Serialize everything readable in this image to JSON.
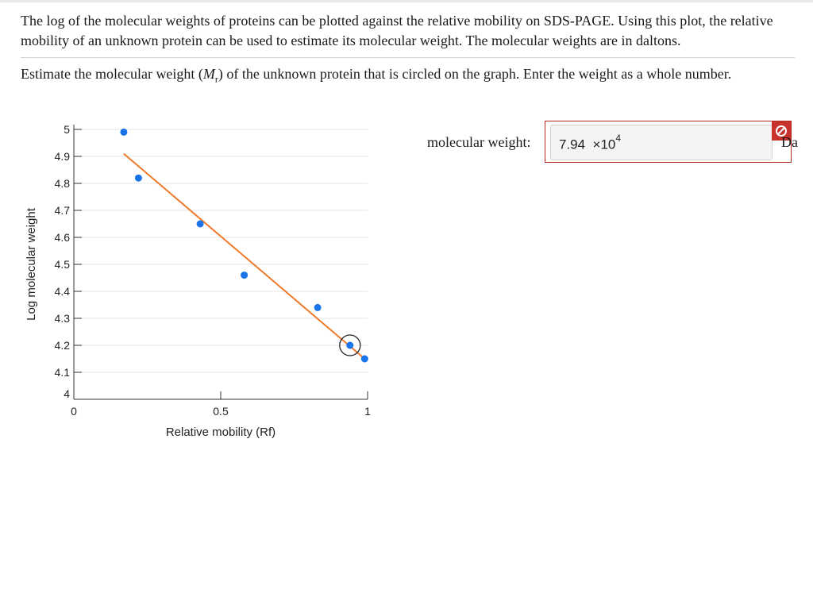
{
  "question": {
    "paragraph1": "The log of the molecular weights of proteins can be plotted against the relative mobility on SDS-PAGE. Using this plot, the relative mobility of an unknown protein can be used to estimate its molecular weight. The molecular weights are in daltons.",
    "prompt_before": "Estimate the molecular weight (",
    "prompt_symbol": "M",
    "prompt_subscript": "r",
    "prompt_after": ") of the unknown protein that is circled on the graph. Enter the weight as a whole number."
  },
  "answer": {
    "label": "molecular weight:",
    "value": "7.94",
    "times": "×10",
    "exponent": "4",
    "unit": "Da",
    "status_icon": "blocked-icon",
    "status_color": "#c7332c"
  },
  "chart_data": {
    "type": "scatter",
    "xlabel": "Relative mobility (Rf)",
    "ylabel": "Log molecular weight",
    "xlim": [
      0,
      1
    ],
    "ylim": [
      4,
      5
    ],
    "xticks": [
      "0",
      "0.5",
      "1"
    ],
    "yticks": [
      "4",
      "4.1",
      "4.2",
      "4.3",
      "4.4",
      "4.5",
      "4.6",
      "4.7",
      "4.8",
      "4.9",
      "5"
    ],
    "grid": true,
    "points": [
      {
        "x": 0.17,
        "y": 4.99
      },
      {
        "x": 0.22,
        "y": 4.82
      },
      {
        "x": 0.43,
        "y": 4.65
      },
      {
        "x": 0.58,
        "y": 4.46
      },
      {
        "x": 0.83,
        "y": 4.34
      },
      {
        "x": 0.94,
        "y": 4.2
      },
      {
        "x": 0.99,
        "y": 4.15
      }
    ],
    "fit_line": {
      "x1": 0.17,
      "y1": 4.91,
      "x2": 0.99,
      "y2": 4.15
    },
    "circled_point_index": 5,
    "point_color": "#1a73e8",
    "line_color": "#f07a2a"
  }
}
